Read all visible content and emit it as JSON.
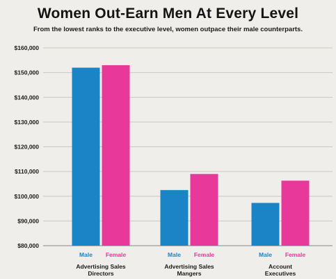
{
  "chart_data": {
    "type": "bar",
    "title": "Women Out-Earn Men At Every Level",
    "subtitle": "From the lowest ranks to the executive level, women outpace their male counterparts.",
    "categories": [
      [
        "Advertising Sales",
        "Directors"
      ],
      [
        "Advertising Sales",
        "Mangers"
      ],
      [
        "Account",
        "Executives"
      ]
    ],
    "series": [
      {
        "name": "Male",
        "values": [
          152000,
          102500,
          97300
        ],
        "color": "#1a84c6"
      },
      {
        "name": "Female",
        "values": [
          153000,
          109000,
          106300
        ],
        "color": "#e8399a"
      }
    ],
    "yticks": [
      "$80,000",
      "$90,000",
      "$100,000",
      "$110,000",
      "$120,000",
      "$130,000",
      "$140,000",
      "$150,000",
      "$160,000"
    ],
    "ylim": [
      80000,
      160000
    ],
    "grid": true,
    "xlabel": "",
    "ylabel": ""
  }
}
